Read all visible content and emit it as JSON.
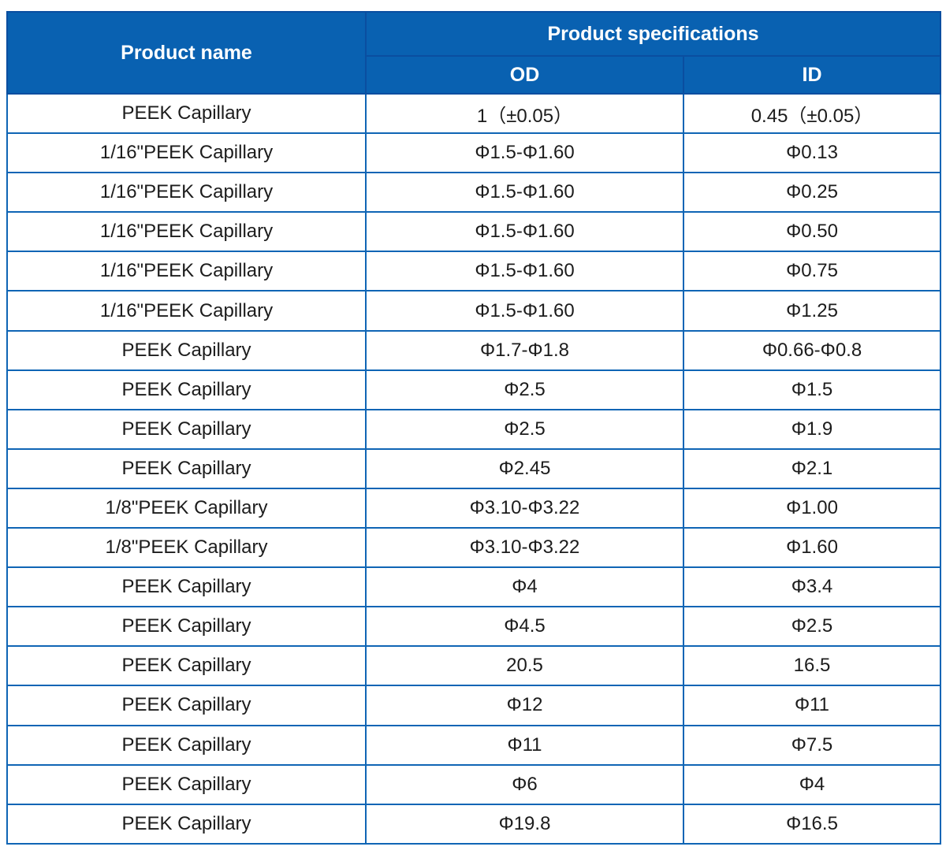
{
  "table": {
    "header": {
      "product_name": "Product name",
      "product_specifications": "Product specifications",
      "od": "OD",
      "id": "ID"
    },
    "rows": [
      {
        "name": "PEEK Capillary",
        "od": "1（±0.05）",
        "id": "0.45（±0.05）"
      },
      {
        "name": "1/16\"PEEK Capillary",
        "od": "Φ1.5-Φ1.60",
        "id": "Φ0.13"
      },
      {
        "name": "1/16\"PEEK Capillary",
        "od": "Φ1.5-Φ1.60",
        "id": "Φ0.25"
      },
      {
        "name": "1/16\"PEEK Capillary",
        "od": "Φ1.5-Φ1.60",
        "id": "Φ0.50"
      },
      {
        "name": "1/16\"PEEK Capillary",
        "od": "Φ1.5-Φ1.60",
        "id": "Φ0.75"
      },
      {
        "name": "1/16\"PEEK Capillary",
        "od": "Φ1.5-Φ1.60",
        "id": "Φ1.25"
      },
      {
        "name": "PEEK Capillary",
        "od": "Φ1.7-Φ1.8",
        "id": "Φ0.66-Φ0.8"
      },
      {
        "name": "PEEK Capillary",
        "od": "Φ2.5",
        "id": "Φ1.5"
      },
      {
        "name": "PEEK Capillary",
        "od": "Φ2.5",
        "id": "Φ1.9"
      },
      {
        "name": "PEEK Capillary",
        "od": "Φ2.45",
        "id": "Φ2.1"
      },
      {
        "name": "1/8\"PEEK Capillary",
        "od": "Φ3.10-Φ3.22",
        "id": "Φ1.00"
      },
      {
        "name": "1/8\"PEEK Capillary",
        "od": "Φ3.10-Φ3.22",
        "id": "Φ1.60"
      },
      {
        "name": "PEEK Capillary",
        "od": "Φ4",
        "id": "Φ3.4"
      },
      {
        "name": "PEEK Capillary",
        "od": "Φ4.5",
        "id": "Φ2.5"
      },
      {
        "name": "PEEK Capillary",
        "od": "20.5",
        "id": "16.5"
      },
      {
        "name": "PEEK Capillary",
        "od": "Φ12",
        "id": "Φ11"
      },
      {
        "name": "PEEK Capillary",
        "od": "Φ11",
        "id": "Φ7.5"
      },
      {
        "name": "PEEK Capillary",
        "od": "Φ6",
        "id": "Φ4"
      },
      {
        "name": "PEEK Capillary",
        "od": "Φ19.8",
        "id": "Φ16.5"
      }
    ]
  },
  "colors": {
    "header_bg": "#0961b1",
    "header_divider": "#0a4ea0",
    "grid_line": "#0f65b5",
    "header_text": "#ffffff",
    "body_text": "#1c1c1c",
    "page_bg": "#ffffff"
  }
}
